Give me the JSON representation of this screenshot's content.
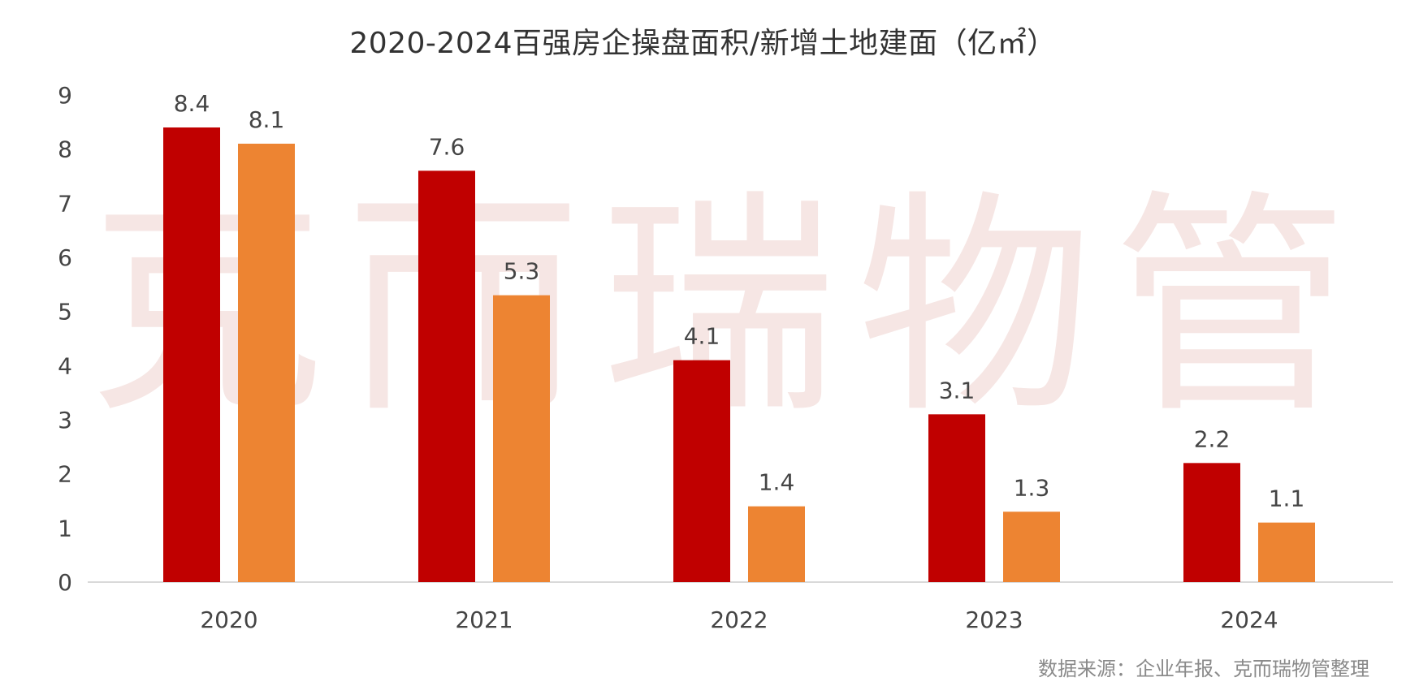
{
  "title": "2020-2024百强房企操盘面积/新增土地建面（亿㎡）",
  "source": "数据来源：企业年报、克而瑞物管整理",
  "watermark": "克而瑞物管",
  "colors": {
    "series1": "#c00000",
    "series2": "#ed8432",
    "axis": "#d9d9d9",
    "watermark": "#f6e6e4"
  },
  "chart_data": {
    "type": "bar",
    "title": "2020-2024百强房企操盘面积/新增土地建面（亿㎡）",
    "categories": [
      "2020",
      "2021",
      "2022",
      "2023",
      "2024"
    ],
    "series": [
      {
        "values": [
          8.4,
          7.6,
          4.1,
          3.1,
          2.2
        ],
        "color": "#c00000"
      },
      {
        "values": [
          8.1,
          5.3,
          1.4,
          1.3,
          1.1
        ],
        "color": "#ed8432"
      }
    ],
    "yticks": [
      "0",
      "1",
      "2",
      "3",
      "4",
      "5",
      "6",
      "7",
      "8",
      "9"
    ],
    "ylim": [
      0,
      9
    ],
    "grid": false,
    "legend": "none",
    "data_labels": true
  }
}
